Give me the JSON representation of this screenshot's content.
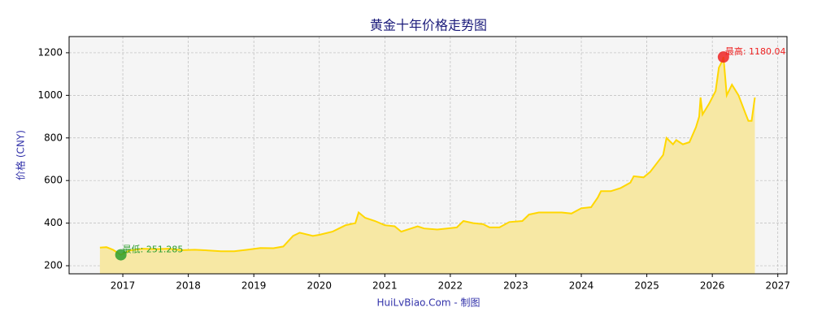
{
  "chart_data": {
    "type": "area-line",
    "title": "黄金十年价格走势图",
    "y_label": "价格 (CNY)",
    "x_label": "HuiLvBiao.Com - 制图",
    "x": [
      2016.65,
      2016.75,
      2016.85,
      2016.97,
      2017.1,
      2017.3,
      2017.5,
      2017.7,
      2017.9,
      2018.1,
      2018.3,
      2018.5,
      2018.7,
      2018.9,
      2019.1,
      2019.3,
      2019.45,
      2019.6,
      2019.7,
      2019.9,
      2020.0,
      2020.2,
      2020.3,
      2020.4,
      2020.55,
      2020.6,
      2020.7,
      2020.85,
      2021.0,
      2021.15,
      2021.25,
      2021.4,
      2021.5,
      2021.6,
      2021.8,
      2021.95,
      2022.1,
      2022.2,
      2022.35,
      2022.5,
      2022.6,
      2022.75,
      2022.9,
      2023.1,
      2023.2,
      2023.35,
      2023.5,
      2023.7,
      2023.85,
      2024.0,
      2024.15,
      2024.25,
      2024.3,
      2024.45,
      2024.6,
      2024.75,
      2024.8,
      2024.95,
      2025.05,
      2025.15,
      2025.25,
      2025.3,
      2025.4,
      2025.45,
      2025.55,
      2025.65,
      2025.75,
      2025.8,
      2025.82,
      2025.85,
      2025.95,
      2026.05,
      2026.1,
      2026.15,
      2026.17,
      2026.22,
      2026.3,
      2026.4,
      2026.5,
      2026.55,
      2026.6,
      2026.65
    ],
    "series": [
      {
        "name": "价格",
        "color": "#ffd700",
        "fill": "#f7e8a4",
        "values": [
          285,
          287,
          275,
          251.285,
          272,
          280,
          278,
          280,
          273,
          275,
          272,
          268,
          268,
          275,
          283,
          282,
          290,
          340,
          355,
          340,
          345,
          360,
          375,
          390,
          400,
          450,
          425,
          410,
          390,
          385,
          360,
          375,
          385,
          375,
          370,
          375,
          380,
          410,
          400,
          395,
          380,
          380,
          405,
          410,
          440,
          450,
          450,
          450,
          445,
          470,
          475,
          520,
          550,
          550,
          565,
          590,
          620,
          615,
          640,
          680,
          720,
          800,
          770,
          790,
          770,
          780,
          850,
          900,
          990,
          910,
          960,
          1020,
          1130,
          1160,
          1180.04,
          1000,
          1050,
          1000,
          920,
          880,
          880,
          990
        ]
      }
    ],
    "annotations": [
      {
        "text": "最低: 251.285",
        "x": 2016.97,
        "y": 251.285,
        "color": "#2e9e2e"
      },
      {
        "text": "最高: 1180.04",
        "x": 2026.17,
        "y": 1180.04,
        "color": "#ee2222"
      }
    ],
    "xlim": [
      2016.18,
      2027.14
    ],
    "ylim": [
      162,
      1276
    ],
    "xticks": [
      2017,
      2018,
      2019,
      2020,
      2021,
      2022,
      2023,
      2024,
      2025,
      2026,
      2027
    ],
    "yticks": [
      200,
      400,
      600,
      800,
      1000,
      1200
    ],
    "grid": true
  }
}
